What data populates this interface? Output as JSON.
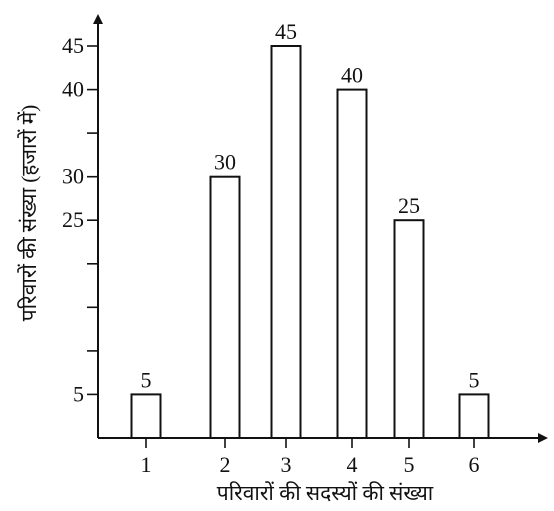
{
  "chart_data": {
    "type": "bar",
    "categories": [
      "1",
      "2",
      "3",
      "4",
      "5",
      "6"
    ],
    "values": [
      5,
      30,
      45,
      40,
      25,
      5
    ],
    "data_labels": [
      "5",
      "30",
      "45",
      "40",
      "25",
      "5"
    ],
    "xlabel": "परिवारों की सदस्यों की संख्या",
    "ylabel": "परिवारों की संख्या (हजारों में)",
    "y_tick_labels": [
      {
        "value": 5,
        "label": "5"
      },
      {
        "value": 25,
        "label": "25"
      },
      {
        "value": 30,
        "label": "30"
      },
      {
        "value": 40,
        "label": "40"
      },
      {
        "value": 45,
        "label": "45"
      }
    ],
    "y_unlabeled_ticks": [
      10,
      15,
      20,
      35
    ],
    "ylim": [
      0,
      50
    ],
    "grid": false,
    "legend": "none",
    "colors": {
      "bar_fill": "#ffffff",
      "bar_stroke": "#111111",
      "text": "#111111"
    }
  }
}
